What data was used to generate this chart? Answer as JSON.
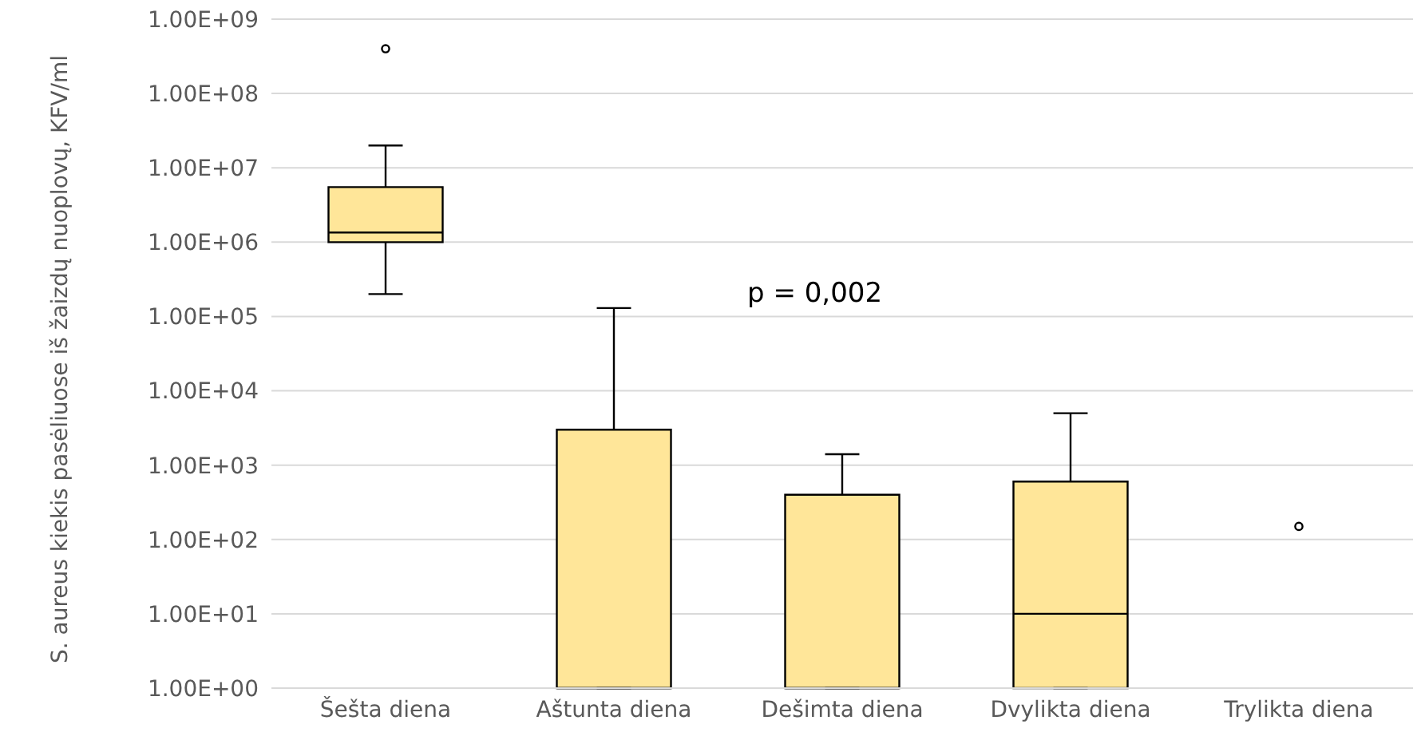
{
  "chart_data": {
    "type": "box",
    "ylabel": "S. aureus kiekis pasėliuose iš žaizdų nuoplovų, KFV/ml",
    "annotations": [
      "p = 0,002"
    ],
    "categories": [
      "Šešta diena",
      "Aštunta diena",
      "Dešimta diena",
      "Dvylikta diena",
      "Trylikta diena"
    ],
    "color": "#ffe699",
    "boxes": [
      {
        "low": 200000,
        "q1": 1000000,
        "median": 1350000,
        "q3": 5500000,
        "high": 20000000,
        "outliers": [
          400000000
        ]
      },
      {
        "low": 1,
        "q1": 1,
        "median": 1,
        "q3": 3000,
        "high": 130000
      },
      {
        "low": 1,
        "q1": 1,
        "median": 1,
        "q3": 400,
        "high": 1400
      },
      {
        "low": 1,
        "q1": 1,
        "median": 10,
        "q3": 600,
        "high": 5000
      },
      null
    ],
    "series": [
      {
        "type": "scatter",
        "color": "#000000",
        "x": [
          "Trylikta diena"
        ],
        "values": [
          150
        ]
      }
    ],
    "log": true,
    "ylim": [
      1,
      1000000000
    ],
    "yticks": [
      {
        "value": 1,
        "label": "1.00E+00"
      },
      {
        "value": 10,
        "label": "1.00E+01"
      },
      {
        "value": 100,
        "label": "1.00E+02"
      },
      {
        "value": 1000,
        "label": "1.00E+03"
      },
      {
        "value": 10000,
        "label": "1.00E+04"
      },
      {
        "value": 100000,
        "label": "1.00E+05"
      },
      {
        "value": 1000000,
        "label": "1.00E+06"
      },
      {
        "value": 10000000,
        "label": "1.00E+07"
      },
      {
        "value": 100000000,
        "label": "1.00E+08"
      },
      {
        "value": 1000000000,
        "label": "1.00E+09"
      }
    ],
    "grid": "y"
  }
}
